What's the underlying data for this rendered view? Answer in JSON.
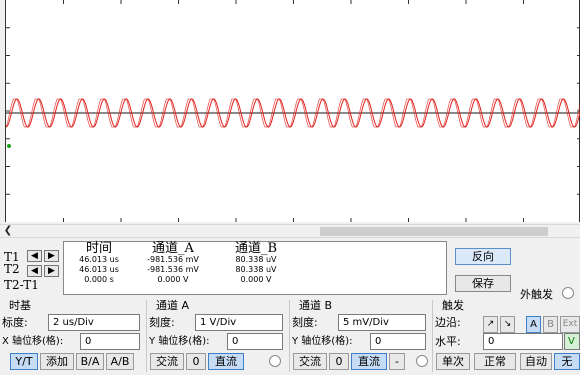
{
  "colors": {
    "trace_red": "#e0201c",
    "trace_dark": "#444444",
    "accent": "#3f7fc9"
  },
  "cursors": {
    "t1": "T1",
    "t2": "T2",
    "t2t1": "T2-T1"
  },
  "readout": {
    "time": {
      "header": "时间",
      "v1": "46.013 us",
      "v2": "46.013 us",
      "v3": "0.000 s"
    },
    "channel_a": {
      "header": "通道_A",
      "v1": "-981.536 mV",
      "v2": "-981.536 mV",
      "v3": "0.000 V"
    },
    "channel_b": {
      "header": "通道_B",
      "v1": "80.338 uV",
      "v2": "80.338 uV",
      "v3": "0.000 V"
    }
  },
  "buttons": {
    "reverse": "反向",
    "save": "保存",
    "ext_trigger": "外触发"
  },
  "timebase": {
    "title": "时基",
    "scale_label": "标度:",
    "scale_value": "2 us/Div",
    "xpos_label": "X 轴位移(格):",
    "xpos_value": "0",
    "yt": "Y/T",
    "add": "添加",
    "ba": "B/A",
    "ab": "A/B"
  },
  "channel_a": {
    "title": "通道 A",
    "scale_label": "刻度:",
    "scale_value": "1  V/Div",
    "ypos_label": "Y 轴位移(格):",
    "ypos_value": "0",
    "ac": "交流",
    "zero": "0",
    "dc": "直流"
  },
  "channel_b": {
    "title": "通道 B",
    "scale_label": "刻度:",
    "scale_value": "5 mV/Div",
    "ypos_label": "Y 轴位移(格):",
    "ypos_value": "0",
    "ac": "交流",
    "zero": "0",
    "dc": "直流",
    "minus": "-"
  },
  "trigger": {
    "title": "触发",
    "edge_label": "边沿:",
    "level_label": "水平:",
    "level_value": "0",
    "level_unit": "V",
    "edge_rise": "↗",
    "edge_fall": "↘",
    "src_a": "A",
    "src_b": "B",
    "src_ext": "Ext",
    "single": "单次",
    "normal": "正常",
    "auto": "自动",
    "none": "无"
  },
  "icons": {
    "left_arrow": "left-arrow-icon",
    "right_arrow": "right-arrow-icon"
  }
}
